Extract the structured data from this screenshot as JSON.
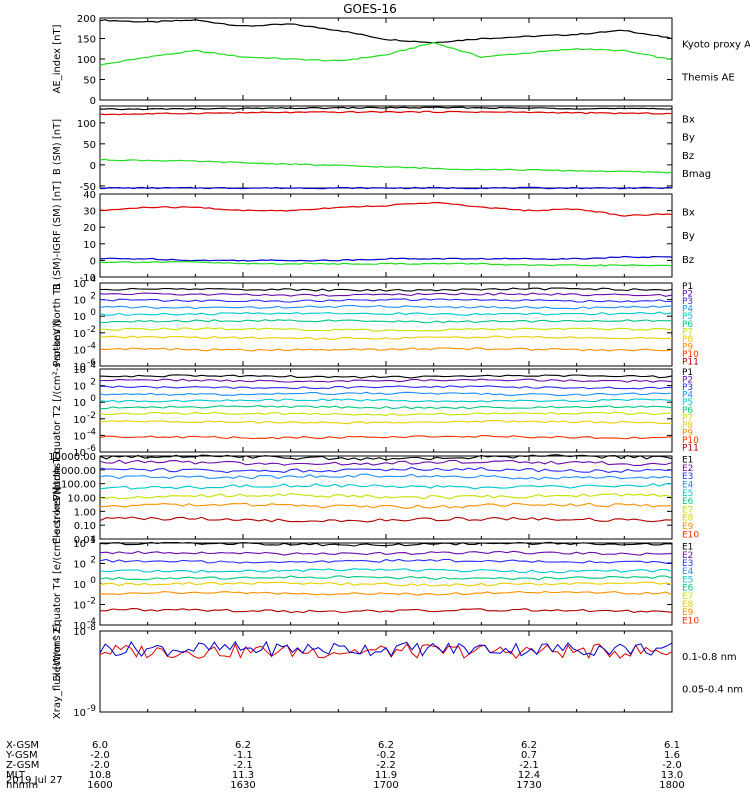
{
  "title": "GOES-16",
  "colors": {
    "black": "#000000",
    "green": "#22dd22",
    "blue": "#0000cc",
    "red": "#dd0000",
    "p1": "#000000",
    "p2": "#6a0dad",
    "p3": "#2d2dff",
    "p4": "#1e90ff",
    "p5": "#00c8d0",
    "p6": "#00c880",
    "p7": "#c8e000",
    "p8": "#e8d000",
    "p9": "#ff9000",
    "p10": "#ff3000",
    "p11": "#b00000"
  },
  "chart_data": [
    {
      "type": "line",
      "ylabel": "AE_index [nT]",
      "ylim": [
        0,
        200
      ],
      "yscale": "linear",
      "yticks": [
        "0",
        "50",
        "100",
        "150",
        "200"
      ],
      "x": [
        1600,
        1610,
        1620,
        1630,
        1640,
        1650,
        1700,
        1710,
        1720,
        1730,
        1740,
        1750,
        1800
      ],
      "series": [
        {
          "name": "Themis AE",
          "color": "black",
          "values": [
            195,
            190,
            195,
            180,
            185,
            170,
            148,
            140,
            150,
            155,
            160,
            170,
            150
          ]
        },
        {
          "name": "Kyoto proxy AE",
          "color": "green",
          "values": [
            85,
            105,
            120,
            105,
            100,
            95,
            110,
            140,
            105,
            115,
            125,
            120,
            98
          ]
        }
      ],
      "legend": [
        "Kyoto proxy AE",
        "Themis AE"
      ]
    },
    {
      "type": "line",
      "ylabel": "B (SM) [nT]",
      "ylim": [
        -55,
        140
      ],
      "yscale": "linear",
      "yticks": [
        "-50",
        "0",
        "50",
        "100"
      ],
      "x": [
        1600,
        1615,
        1630,
        1645,
        1700,
        1715,
        1730,
        1745,
        1800
      ],
      "series": [
        {
          "name": "Bx",
          "color": "blue",
          "values": [
            -55,
            -55,
            -55,
            -55,
            -55,
            -55,
            -55,
            -55,
            -55
          ]
        },
        {
          "name": "By",
          "color": "green",
          "values": [
            12,
            10,
            5,
            0,
            -5,
            -10,
            -12,
            -15,
            -18
          ]
        },
        {
          "name": "Bz",
          "color": "red",
          "values": [
            120,
            122,
            124,
            125,
            126,
            126,
            125,
            123,
            122
          ]
        },
        {
          "name": "Bmag",
          "color": "black",
          "values": [
            132,
            133,
            134,
            135,
            136,
            136,
            135,
            134,
            133
          ]
        }
      ],
      "legend": [
        "Bx",
        "By",
        "Bz",
        "Bmag"
      ]
    },
    {
      "type": "line",
      "ylabel": "B (SM)-IGRF (SM) [nT]",
      "ylim": [
        -10,
        40
      ],
      "yscale": "linear",
      "yticks": [
        "-10",
        "0",
        "10",
        "20",
        "30",
        "40"
      ],
      "x": [
        1600,
        1610,
        1620,
        1630,
        1640,
        1650,
        1700,
        1710,
        1720,
        1730,
        1740,
        1750,
        1800
      ],
      "series": [
        {
          "name": "Bx",
          "color": "blue",
          "values": [
            1,
            1,
            0,
            0,
            0,
            0,
            1,
            1,
            1,
            1,
            1,
            2,
            2
          ]
        },
        {
          "name": "By",
          "color": "green",
          "values": [
            -1,
            -1,
            -1,
            -2,
            -2,
            -2,
            -2,
            -2,
            -2,
            -3,
            -3,
            -3,
            -3
          ]
        },
        {
          "name": "Bz",
          "color": "red",
          "values": [
            30,
            32,
            32,
            30,
            30,
            32,
            33,
            35,
            32,
            30,
            31,
            27,
            28
          ]
        }
      ],
      "legend": [
        "Bx",
        "By",
        "Bz"
      ]
    },
    {
      "type": "line",
      "ylabel": "Protons North T1",
      "yscale": "log",
      "ylim": [
        -6,
        4
      ],
      "yticks": [
        "10^4",
        "10^2",
        "10^0",
        "10^-2",
        "10^-4",
        "10^-6"
      ],
      "series_levels": [
        3.2,
        2.6,
        1.9,
        1.1,
        0.3,
        -0.6,
        -1.6,
        -2.6,
        -4
      ],
      "series_colors": [
        "p1",
        "p2",
        "p3",
        "p4",
        "p5",
        "p6",
        "p7",
        "p8",
        "p9"
      ],
      "legend": [
        "P1",
        "P2",
        "P3",
        "P4",
        "P5",
        "P6",
        "P7",
        "P8",
        "P9",
        "P10",
        "P11"
      ]
    },
    {
      "type": "line",
      "ylabel": "Protons Equator T2 [/(cm²-s-sr-keV)]",
      "yscale": "log",
      "ylim": [
        -6,
        4
      ],
      "yticks": [
        "10^4",
        "10^2",
        "10^0",
        "10^-2",
        "10^-4",
        "10^-6"
      ],
      "series_levels": [
        3.1,
        2.6,
        1.8,
        1.0,
        0.2,
        -0.6,
        -1.4,
        -2.4,
        -4.2
      ],
      "series_colors": [
        "p1",
        "p2",
        "p3",
        "p4",
        "p5",
        "p6",
        "p7",
        "p8",
        "p10"
      ],
      "legend": [
        "P1",
        "P2",
        "P3",
        "P4",
        "P5",
        "P6",
        "P7",
        "P8",
        "P9",
        "P10",
        "P11"
      ]
    },
    {
      "type": "line",
      "ylabel": "Electrons North T3",
      "yscale": "log",
      "ylim": [
        -2,
        4
      ],
      "yticks": [
        "0.01",
        "0.10",
        "1.00",
        "10.00",
        "100.00",
        "1000.00",
        "10000.00"
      ],
      "series_levels": [
        3.9,
        3.5,
        3.0,
        2.5,
        1.8,
        1.1,
        0.4,
        -0.6
      ],
      "series_colors": [
        "p1",
        "p2",
        "p3",
        "p4",
        "p5",
        "p7",
        "p9",
        "p11"
      ],
      "legend": [
        "E1",
        "E2",
        "E3",
        "E4",
        "E5",
        "E6",
        "E7",
        "E8",
        "E9",
        "E10"
      ]
    },
    {
      "type": "line",
      "ylabel": "Electrons Equator T4 [e/(cm²-s-sr-keV)]",
      "yscale": "log",
      "ylim": [
        -4,
        4
      ],
      "yticks": [
        "10^4",
        "10^2",
        "10^0",
        "10^-2",
        "10^-4"
      ],
      "series_levels": [
        3.9,
        3.0,
        2.2,
        1.3,
        0.6,
        0.0,
        -0.9,
        -2.6
      ],
      "series_colors": [
        "p1",
        "p2",
        "p3",
        "p5",
        "p6",
        "p8",
        "p9",
        "p11"
      ],
      "legend": [
        "E1",
        "E2",
        "E3",
        "E4",
        "E5",
        "E6",
        "E7",
        "E8",
        "E9",
        "E10"
      ]
    },
    {
      "type": "line",
      "ylabel": "Xray_flux [W/m^2]",
      "yscale": "log",
      "ylim": [
        -9,
        -8
      ],
      "yticks": [
        "10^-8",
        "10^-9"
      ],
      "series": [
        {
          "name": "0.1-0.8 nm",
          "color": "red",
          "level": -8.25
        },
        {
          "name": "0.05-0.4 nm",
          "color": "blue",
          "level": -8.22
        }
      ],
      "legend": [
        "0.1-0.8 nm",
        "0.05-0.4 nm"
      ]
    }
  ],
  "footer": {
    "row_labels": [
      "X-GSM",
      "Y-GSM",
      "Z-GSM",
      "MLT",
      "hhmm",
      "2019 Jul 27"
    ],
    "columns": [
      {
        "x": "6.0",
        "y": "-2.0",
        "z": "-2.0",
        "mlt": "10.8",
        "hhmm": "1600"
      },
      {
        "x": "6.2",
        "y": "-1.1",
        "z": "-2.1",
        "mlt": "11.3",
        "hhmm": "1630"
      },
      {
        "x": "6.2",
        "y": "-0.2",
        "z": "-2.2",
        "mlt": "11.9",
        "hhmm": "1700"
      },
      {
        "x": "6.2",
        "y": "0.7",
        "z": "-2.1",
        "mlt": "12.4",
        "hhmm": "1730"
      },
      {
        "x": "6.1",
        "y": "1.6",
        "z": "-2.0",
        "mlt": "13.0",
        "hhmm": "1800"
      }
    ]
  }
}
